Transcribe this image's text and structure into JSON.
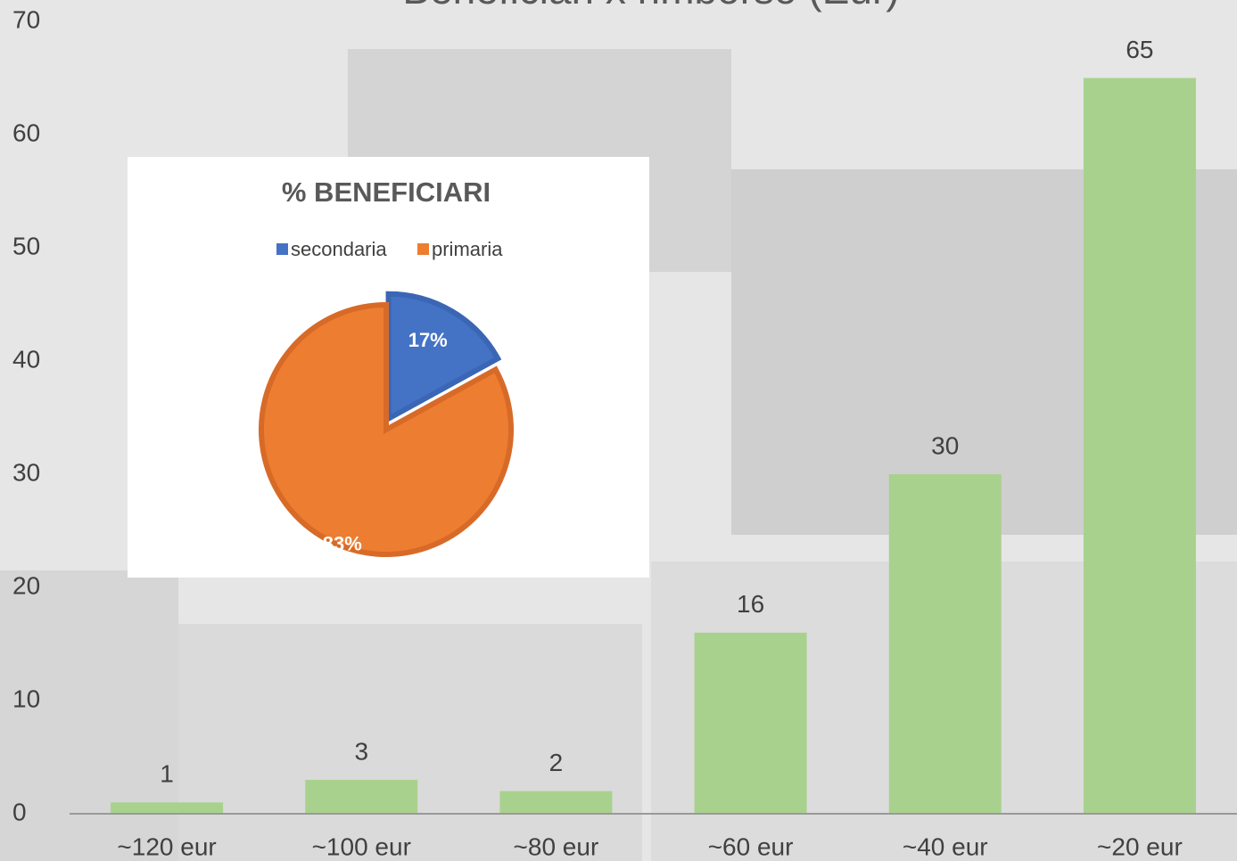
{
  "chart_data": [
    {
      "type": "bar",
      "title": "Beneficiari x rimborso (Eur)",
      "categories": [
        "~120 eur",
        "~100 eur",
        "~80 eur",
        "~60 eur",
        "~40 eur",
        "~20 eur"
      ],
      "values": [
        1,
        3,
        2,
        16,
        30,
        65
      ],
      "color": "#a9d18e",
      "ylim": [
        0,
        70
      ],
      "yticks": [
        0,
        10,
        20,
        30,
        40,
        50,
        60,
        70
      ],
      "grid": false
    },
    {
      "type": "pie",
      "title": "% BENEFICIARI",
      "categories": [
        "secondaria",
        "primaria"
      ],
      "values": [
        17,
        83
      ],
      "value_labels": [
        "17%",
        "83%"
      ],
      "colors": [
        "#4472c4",
        "#ed7d31"
      ],
      "legend": "top"
    }
  ]
}
